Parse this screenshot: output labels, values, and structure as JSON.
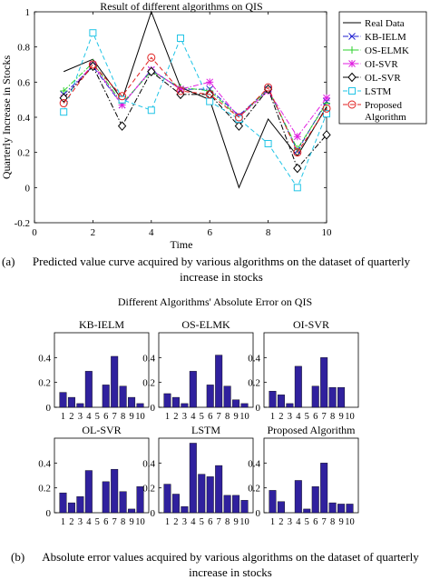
{
  "captions": {
    "a_tag": "(a)",
    "a_text": "Predicted value curve acquired by various algorithms on the dataset of quarterly increase in stocks",
    "b_tag": "(b)",
    "b_text": "Absolute error values acquired by various algorithms on the dataset of quarterly increase in stocks"
  },
  "chart_data": [
    {
      "type": "line",
      "title": "Result of different algorithms on QIS",
      "xlabel": "Time",
      "ylabel": "Quarterly Increase in Stocks",
      "xlim": [
        0,
        10
      ],
      "ylim": [
        -0.2,
        1
      ],
      "xticks": [
        "0",
        "2",
        "4",
        "6",
        "8",
        "10"
      ],
      "yticks": [
        "-0.2",
        "0",
        "0.2",
        "0.4",
        "0.6",
        "0.8",
        "1"
      ],
      "legend_position": "top-right",
      "x": [
        1,
        2,
        3,
        4,
        5,
        6,
        7,
        8,
        9,
        10
      ],
      "series": [
        {
          "name": "Real Data",
          "color": "#000000",
          "marker": "none",
          "dash": "solid",
          "values": [
            0.66,
            0.73,
            0.5,
            1.0,
            0.57,
            0.5,
            0.0,
            0.39,
            0.18,
            0.46
          ]
        },
        {
          "name": "KB-IELM",
          "color": "#1f1fd0",
          "marker": "x",
          "dash": "dashdot",
          "values": [
            0.53,
            0.69,
            0.47,
            0.67,
            0.56,
            0.56,
            0.41,
            0.56,
            0.21,
            0.49
          ]
        },
        {
          "name": "OS-ELMK",
          "color": "#2ed12e",
          "marker": "plus",
          "dash": "dashdot",
          "values": [
            0.55,
            0.71,
            0.48,
            0.66,
            0.57,
            0.55,
            0.4,
            0.56,
            0.22,
            0.48
          ]
        },
        {
          "name": "OI-SVR",
          "color": "#e01ee0",
          "marker": "star",
          "dash": "dashdot",
          "values": [
            0.51,
            0.7,
            0.47,
            0.67,
            0.56,
            0.6,
            0.4,
            0.55,
            0.29,
            0.51
          ]
        },
        {
          "name": "OL-SVR",
          "color": "#000000",
          "marker": "diamond",
          "dash": "dashdot",
          "values": [
            0.51,
            0.69,
            0.35,
            0.66,
            0.53,
            0.53,
            0.35,
            0.56,
            0.11,
            0.3
          ]
        },
        {
          "name": "LSTM",
          "color": "#21c4e6",
          "marker": "square",
          "dash": "dashed",
          "values": [
            0.43,
            0.88,
            0.5,
            0.44,
            0.85,
            0.49,
            0.39,
            0.25,
            0.0,
            0.42
          ]
        },
        {
          "name": "Proposed Algorithm",
          "color": "#e02020",
          "marker": "circle",
          "dash": "dashed",
          "values": [
            0.48,
            0.7,
            0.52,
            0.74,
            0.55,
            0.53,
            0.4,
            0.57,
            0.2,
            0.45
          ]
        }
      ]
    },
    {
      "type": "bar",
      "title": "Different Algorithms' Absolute Error on QIS",
      "bar_color": "#30219e",
      "categories": [
        "1",
        "2",
        "3",
        "4",
        "5",
        "6",
        "7",
        "8",
        "9",
        "10"
      ],
      "ylim": [
        0,
        0.6
      ],
      "yticks": [
        "0",
        "0.2",
        "0.4"
      ],
      "panels": [
        {
          "name": "KB-IELM",
          "values": [
            0.12,
            0.08,
            0.03,
            0.29,
            0.0,
            0.18,
            0.41,
            0.17,
            0.08,
            0.03
          ]
        },
        {
          "name": "OS-ELMK",
          "values": [
            0.11,
            0.08,
            0.03,
            0.29,
            0.0,
            0.18,
            0.42,
            0.17,
            0.06,
            0.03
          ]
        },
        {
          "name": "OI-SVR",
          "values": [
            0.13,
            0.1,
            0.03,
            0.33,
            0.0,
            0.17,
            0.4,
            0.16,
            0.16,
            0.0
          ]
        },
        {
          "name": "OL-SVR",
          "values": [
            0.16,
            0.08,
            0.13,
            0.34,
            0.0,
            0.25,
            0.35,
            0.17,
            0.03,
            0.21
          ]
        },
        {
          "name": "LSTM",
          "values": [
            0.23,
            0.15,
            0.05,
            0.56,
            0.31,
            0.29,
            0.38,
            0.14,
            0.14,
            0.1
          ]
        },
        {
          "name": "Proposed Algorithm",
          "values": [
            0.18,
            0.09,
            0.0,
            0.26,
            0.03,
            0.21,
            0.4,
            0.08,
            0.07,
            0.07
          ]
        }
      ]
    }
  ]
}
